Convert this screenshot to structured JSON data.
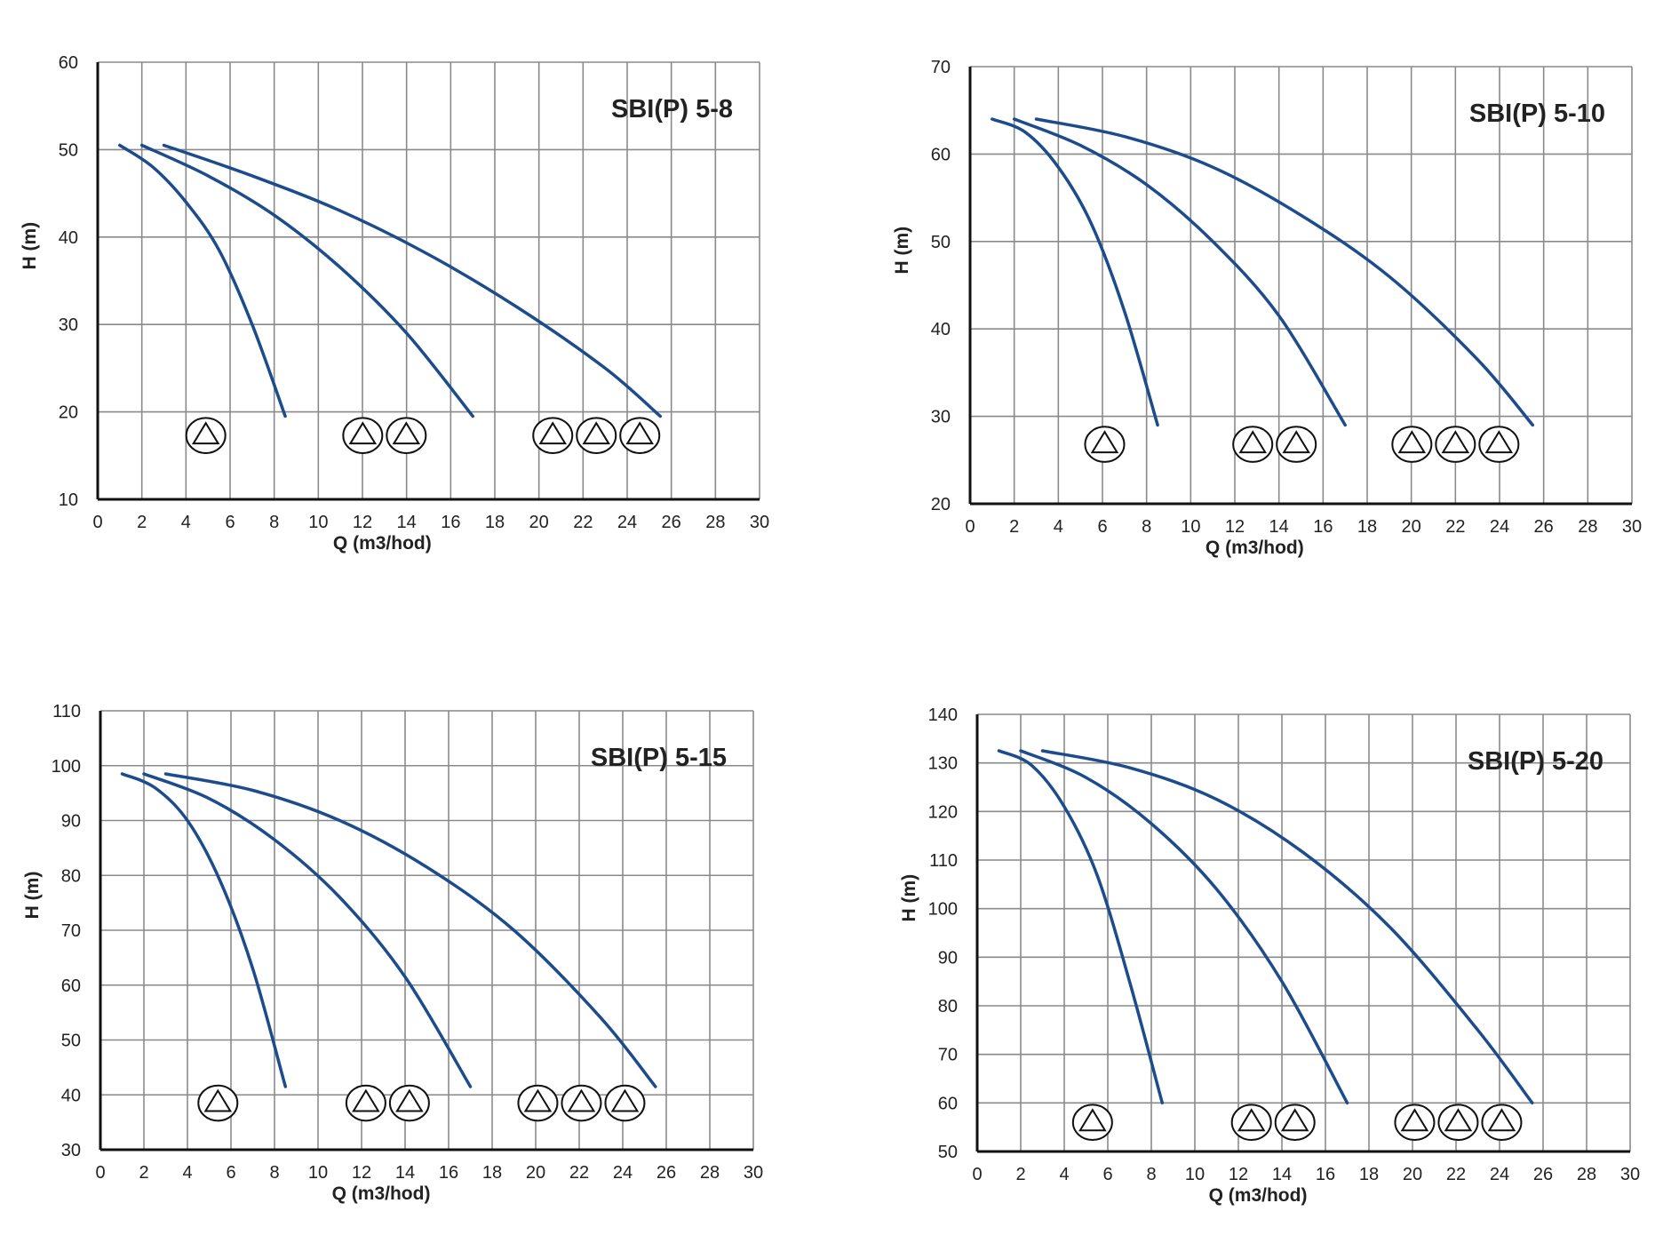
{
  "colors": {
    "curve": "#1d4c8c",
    "grid": "#8a8a8a",
    "axis": "#111111"
  },
  "chart_data": [
    {
      "type": "line",
      "title": "SBI(P) 5-8",
      "xlabel": "Q (m3/hod)",
      "ylabel": "H (m)",
      "xlim": [
        0,
        30
      ],
      "ylim": [
        10,
        60
      ],
      "xticks": [
        "0",
        "2",
        "4",
        "6",
        "8",
        "10",
        "12",
        "14",
        "16",
        "18",
        "20",
        "22",
        "24",
        "26",
        "28",
        "30"
      ],
      "yticks": [
        "10",
        "20",
        "30",
        "40",
        "50",
        "60"
      ],
      "grid": true,
      "series": [
        {
          "values": [
            [
              1,
              50.5
            ],
            [
              2.5,
              48
            ],
            [
              4,
              44
            ],
            [
              5.5,
              38.5
            ],
            [
              7,
              30
            ],
            [
              8.5,
              19.5
            ]
          ]
        },
        {
          "values": [
            [
              2,
              50.5
            ],
            [
              5,
              47
            ],
            [
              8,
              42.5
            ],
            [
              11,
              36.5
            ],
            [
              14,
              29
            ],
            [
              17,
              19.5
            ]
          ]
        },
        {
          "values": [
            [
              3,
              50.5
            ],
            [
              7,
              47
            ],
            [
              11,
              43
            ],
            [
              15,
              38
            ],
            [
              19,
              32
            ],
            [
              23,
              25
            ],
            [
              25.5,
              19.5
            ]
          ]
        }
      ],
      "markers": [
        {
          "x": 4.9,
          "y": 17.3,
          "count": 1
        },
        {
          "x": 13,
          "y": 17.3,
          "count": 2
        },
        {
          "x": 22.6,
          "y": 17.3,
          "count": 3
        }
      ]
    },
    {
      "type": "line",
      "title": "SBI(P) 5-10",
      "xlabel": "Q (m3/hod)",
      "ylabel": "H (m)",
      "xlim": [
        0,
        30
      ],
      "ylim": [
        20,
        70
      ],
      "xticks": [
        "0",
        "2",
        "4",
        "6",
        "8",
        "10",
        "12",
        "14",
        "16",
        "18",
        "20",
        "22",
        "24",
        "26",
        "28",
        "30"
      ],
      "yticks": [
        "20",
        "30",
        "40",
        "50",
        "60",
        "70"
      ],
      "grid": true,
      "series": [
        {
          "values": [
            [
              1,
              64
            ],
            [
              2.5,
              62.5
            ],
            [
              4,
              58.5
            ],
            [
              5.5,
              52
            ],
            [
              7,
              42
            ],
            [
              8.5,
              29
            ]
          ]
        },
        {
          "values": [
            [
              2,
              64
            ],
            [
              5,
              61
            ],
            [
              8,
              56.5
            ],
            [
              11,
              50
            ],
            [
              14,
              41.5
            ],
            [
              17,
              29
            ]
          ]
        },
        {
          "values": [
            [
              3,
              64
            ],
            [
              7,
              62
            ],
            [
              11,
              58.5
            ],
            [
              15,
              53
            ],
            [
              19,
              46
            ],
            [
              23,
              36.5
            ],
            [
              25.5,
              29
            ]
          ]
        }
      ],
      "markers": [
        {
          "x": 6.1,
          "y": 26.8,
          "count": 1
        },
        {
          "x": 13.8,
          "y": 26.8,
          "count": 2
        },
        {
          "x": 22,
          "y": 26.8,
          "count": 3
        }
      ]
    },
    {
      "type": "line",
      "title": "SBI(P) 5-15",
      "xlabel": "Q (m3/hod)",
      "ylabel": "H (m)",
      "xlim": [
        0,
        30
      ],
      "ylim": [
        30,
        110
      ],
      "xticks": [
        "0",
        "2",
        "4",
        "6",
        "8",
        "10",
        "12",
        "14",
        "16",
        "18",
        "20",
        "22",
        "24",
        "26",
        "28",
        "30"
      ],
      "yticks": [
        "30",
        "40",
        "50",
        "60",
        "70",
        "80",
        "90",
        "100",
        "110"
      ],
      "grid": true,
      "series": [
        {
          "values": [
            [
              1,
              98.5
            ],
            [
              2.5,
              96
            ],
            [
              4,
              90
            ],
            [
              5.5,
              79
            ],
            [
              7,
              63
            ],
            [
              8.5,
              41.5
            ]
          ]
        },
        {
          "values": [
            [
              2,
              98.5
            ],
            [
              5,
              94
            ],
            [
              8,
              86.5
            ],
            [
              11,
              76
            ],
            [
              14,
              61.5
            ],
            [
              17,
              41.5
            ]
          ]
        },
        {
          "values": [
            [
              3,
              98.5
            ],
            [
              7,
              95.5
            ],
            [
              11,
              90
            ],
            [
              15,
              81.5
            ],
            [
              19,
              70
            ],
            [
              23,
              54
            ],
            [
              25.5,
              41.5
            ]
          ]
        }
      ],
      "markers": [
        {
          "x": 5.4,
          "y": 38.5,
          "count": 1
        },
        {
          "x": 13.2,
          "y": 38.5,
          "count": 2
        },
        {
          "x": 22.1,
          "y": 38.5,
          "count": 3
        }
      ]
    },
    {
      "type": "line",
      "title": "SBI(P) 5-20",
      "xlabel": "Q (m3/hod)",
      "ylabel": "H (m)",
      "xlim": [
        0,
        30
      ],
      "ylim": [
        50,
        140
      ],
      "xticks": [
        "0",
        "2",
        "4",
        "6",
        "8",
        "10",
        "12",
        "14",
        "16",
        "18",
        "20",
        "22",
        "24",
        "26",
        "28",
        "30"
      ],
      "yticks": [
        "50",
        "60",
        "70",
        "80",
        "90",
        "100",
        "110",
        "120",
        "130",
        "140"
      ],
      "grid": true,
      "series": [
        {
          "values": [
            [
              1,
              132.5
            ],
            [
              2.5,
              129.5
            ],
            [
              4,
              121
            ],
            [
              5.5,
              107
            ],
            [
              7,
              85
            ],
            [
              8.5,
              60
            ]
          ]
        },
        {
          "values": [
            [
              2,
              132.5
            ],
            [
              5,
              127
            ],
            [
              8,
              117.5
            ],
            [
              11,
              104
            ],
            [
              14,
              85
            ],
            [
              17,
              60
            ]
          ]
        },
        {
          "values": [
            [
              3,
              132.5
            ],
            [
              7,
              129
            ],
            [
              11,
              122.5
            ],
            [
              15,
              111.5
            ],
            [
              19,
              96
            ],
            [
              23,
              75
            ],
            [
              25.5,
              60
            ]
          ]
        }
      ],
      "markers": [
        {
          "x": 5.3,
          "y": 56,
          "count": 1
        },
        {
          "x": 13.6,
          "y": 56,
          "count": 2
        },
        {
          "x": 22.1,
          "y": 56,
          "count": 3
        }
      ]
    }
  ]
}
